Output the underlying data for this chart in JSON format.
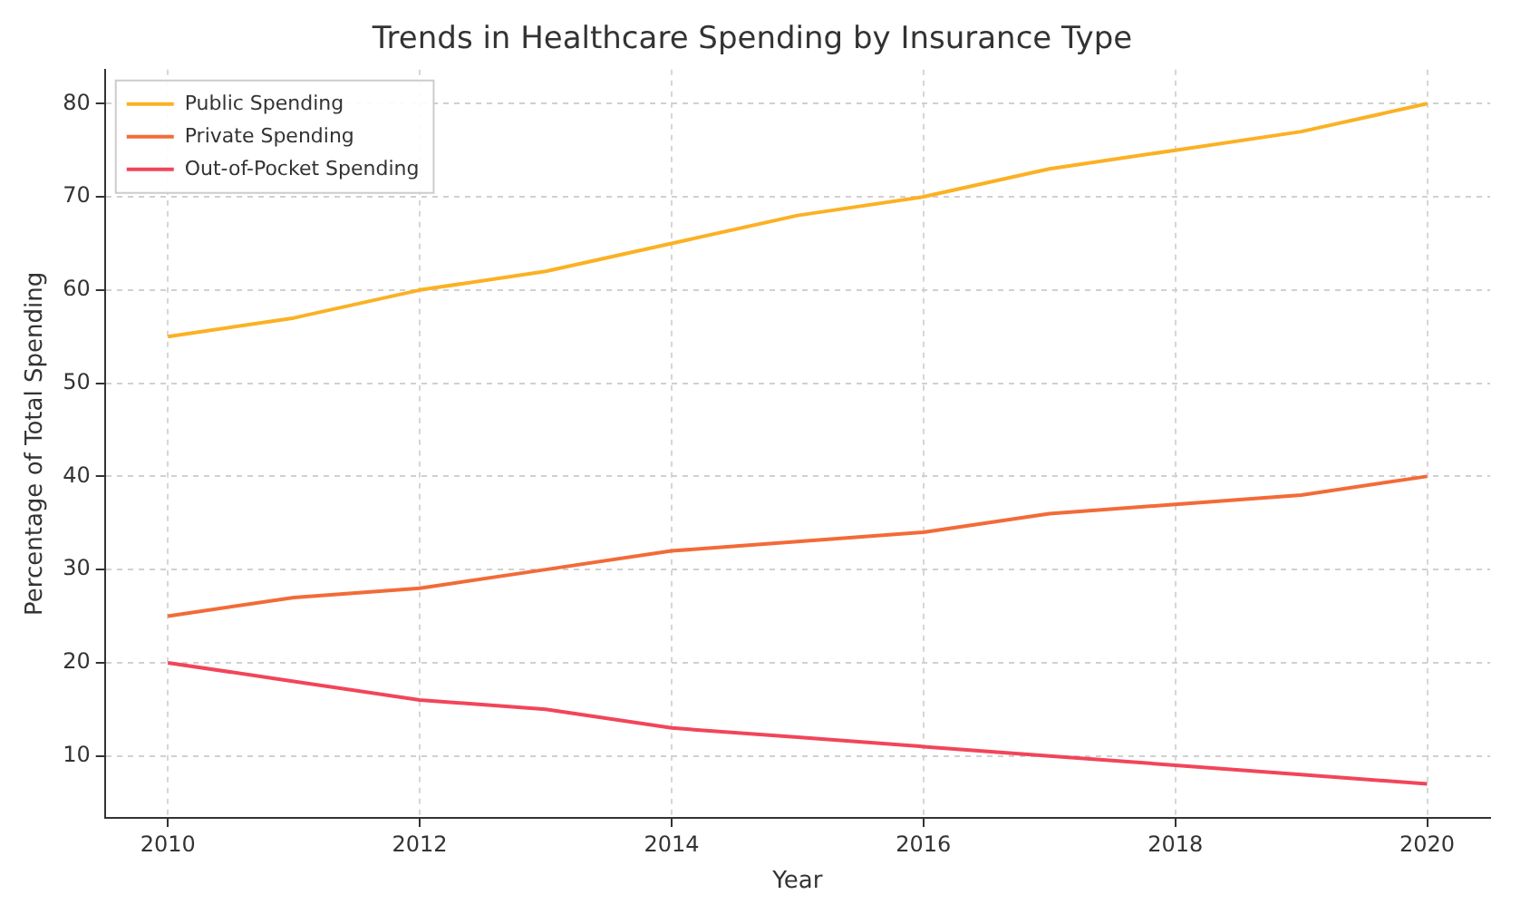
{
  "chart_data": {
    "type": "line",
    "title": "Trends in Healthcare Spending by Insurance Type",
    "xlabel": "Year",
    "ylabel": "Percentage of Total Spending",
    "x": [
      2010,
      2011,
      2012,
      2013,
      2014,
      2015,
      2016,
      2017,
      2018,
      2019,
      2020
    ],
    "series": [
      {
        "name": "Public Spending",
        "color": "#fbb124",
        "values": [
          55,
          57,
          60,
          62,
          65,
          68,
          70,
          73,
          75,
          77,
          80
        ]
      },
      {
        "name": "Private Spending",
        "color": "#f26b38",
        "values": [
          25,
          27,
          28,
          30,
          32,
          33,
          34,
          36,
          37,
          38,
          40
        ]
      },
      {
        "name": "Out-of-Pocket Spending",
        "color": "#f2455a",
        "values": [
          20,
          18,
          16,
          15,
          13,
          12,
          11,
          10,
          9,
          8,
          7
        ]
      }
    ],
    "xlim": [
      2009.5,
      2020.5
    ],
    "xticks": [
      2010,
      2012,
      2014,
      2016,
      2018,
      2020
    ],
    "ylim": [
      3.35,
      83.65
    ],
    "yticks": [
      10,
      20,
      30,
      40,
      50,
      60,
      70,
      80
    ],
    "grid": true,
    "legend": "top left",
    "marker": "none",
    "line_style": "solid"
  }
}
